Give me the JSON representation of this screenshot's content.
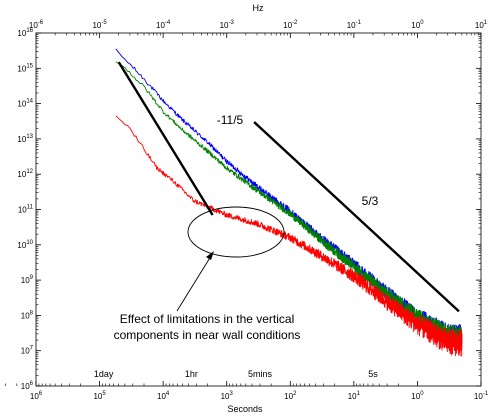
{
  "chart_data": {
    "type": "line",
    "title": "",
    "x_top_label": "Hz",
    "x_bottom_label": "Seconds",
    "ylabel": "",
    "x_scale": "log",
    "y_scale": "log",
    "xlim_hz": [
      1e-06,
      10
    ],
    "ylim": [
      1000000.0,
      1e+16
    ],
    "grid": false,
    "top_ticks": [
      {
        "exp": "-6",
        "hz": 1e-06
      },
      {
        "exp": "-5",
        "hz": 1e-05
      },
      {
        "exp": "-4",
        "hz": 0.0001
      },
      {
        "exp": "-3",
        "hz": 0.001
      },
      {
        "exp": "-2",
        "hz": 0.01
      },
      {
        "exp": "-1",
        "hz": 0.1
      },
      {
        "exp": "0",
        "hz": 1
      },
      {
        "exp": "1",
        "hz": 10
      }
    ],
    "bottom_ticks": [
      {
        "exp": "6",
        "seconds": 1000000.0
      },
      {
        "exp": "5",
        "seconds": 100000.0
      },
      {
        "exp": "4",
        "seconds": 10000.0
      },
      {
        "exp": "3",
        "seconds": 1000.0
      },
      {
        "exp": "2",
        "seconds": 100.0
      },
      {
        "exp": "1",
        "seconds": 10
      },
      {
        "exp": "0",
        "seconds": 1
      },
      {
        "exp": "-1",
        "seconds": 0.1
      }
    ],
    "y_ticks": [
      {
        "exp": "6",
        "value": 1000000.0
      },
      {
        "exp": "7",
        "value": 10000000.0
      },
      {
        "exp": "8",
        "value": 100000000.0
      },
      {
        "exp": "9",
        "value": 1000000000.0
      },
      {
        "exp": "10",
        "value": 10000000000.0
      },
      {
        "exp": "11",
        "value": 100000000000.0
      },
      {
        "exp": "12",
        "value": 1000000000000.0
      },
      {
        "exp": "13",
        "value": 10000000000000.0
      },
      {
        "exp": "14",
        "value": 100000000000000.0
      },
      {
        "exp": "15",
        "value": 1000000000000000.0
      },
      {
        "exp": "16",
        "value": 1e+16
      }
    ],
    "tick_base": "10",
    "time_markers": [
      {
        "label": "1day",
        "seconds": 86400
      },
      {
        "label": "1hr",
        "seconds": 3600
      },
      {
        "label": "5mins",
        "seconds": 300
      },
      {
        "label": "5s",
        "seconds": 5
      }
    ],
    "series": [
      {
        "color": "#0000ff",
        "noise_decades": 0.35,
        "points": [
          [
            1.8e-05,
            3200000000000000.0
          ],
          [
            3e-05,
            1300000000000000.0
          ],
          [
            5e-05,
            500000000000000.0
          ],
          [
            0.0001,
            120000000000000.0
          ],
          [
            0.0002,
            35000000000000.0
          ],
          [
            0.0005,
            8000000000000.0
          ],
          [
            0.001,
            2300000000000.0
          ],
          [
            0.003,
            450000000000.0
          ],
          [
            0.01,
            90000000000.0
          ],
          [
            0.03,
            16000000000.0
          ],
          [
            0.1,
            2800000000.0
          ],
          [
            0.3,
            500000000.0
          ],
          [
            1,
            90000000.0
          ],
          [
            3,
            28000000.0
          ],
          [
            5,
            25000000.0
          ]
        ]
      },
      {
        "color": "#008000",
        "noise_decades": 0.35,
        "points": [
          [
            1.8e-05,
            1700000000000000.0
          ],
          [
            3e-05,
            750000000000000.0
          ],
          [
            5e-05,
            300000000000000.0
          ],
          [
            0.0001,
            60000000000000.0
          ],
          [
            0.0002,
            18000000000000.0
          ],
          [
            0.0005,
            4500000000000.0
          ],
          [
            0.001,
            1500000000000.0
          ],
          [
            0.003,
            350000000000.0
          ],
          [
            0.01,
            75000000000.0
          ],
          [
            0.03,
            14000000000.0
          ],
          [
            0.1,
            2400000000.0
          ],
          [
            0.3,
            450000000.0
          ],
          [
            1,
            85000000.0
          ],
          [
            3,
            26000000.0
          ],
          [
            5,
            24000000.0
          ]
        ]
      },
      {
        "color": "#ff0000",
        "noise_decades": 0.4,
        "points": [
          [
            1.8e-05,
            45000000000000.0
          ],
          [
            3e-05,
            20000000000000.0
          ],
          [
            5e-05,
            5000000000000.0
          ],
          [
            8e-05,
            1500000000000.0
          ],
          [
            0.00015,
            600000000000.0
          ],
          [
            0.0003,
            180000000000.0
          ],
          [
            0.0005,
            120000000000.0
          ],
          [
            0.001,
            70000000000.0
          ],
          [
            0.003,
            40000000000.0
          ],
          [
            0.01,
            16000000000.0
          ],
          [
            0.03,
            5000000000.0
          ],
          [
            0.1,
            1300000000.0
          ],
          [
            0.3,
            280000000.0
          ],
          [
            1,
            55000000.0
          ],
          [
            3,
            18000000.0
          ],
          [
            5,
            16000000.0
          ]
        ]
      }
    ],
    "reference_lines": [
      {
        "label": "-11/5",
        "points": [
          [
            2e-05,
            1500000000000000.0
          ],
          [
            0.0006,
            70000000000.0
          ]
        ]
      },
      {
        "label": "5/3",
        "points": [
          [
            0.0027,
            30000000000000.0
          ],
          [
            4.5,
            130000000.0
          ]
        ]
      }
    ],
    "annotation": {
      "lines": [
        "Effect of limitations in the vertical",
        "components in near wall conditions"
      ]
    }
  }
}
